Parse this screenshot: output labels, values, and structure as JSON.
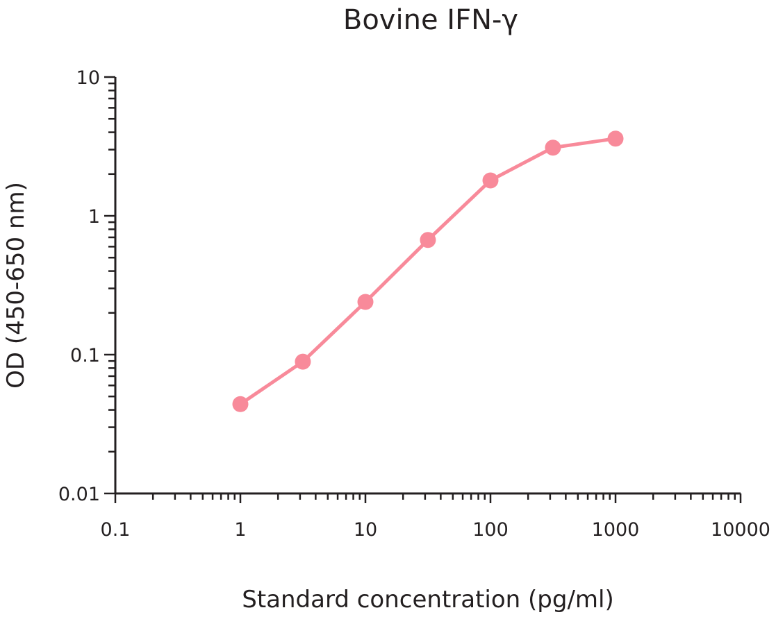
{
  "chart_data": {
    "type": "line",
    "title": "Bovine IFN-γ",
    "xlabel": "Standard concentration (pg/ml)",
    "ylabel": "OD (450-650 nm)",
    "xscale": "log",
    "yscale": "log",
    "xlim": [
      0.1,
      10000
    ],
    "ylim": [
      0.01,
      10
    ],
    "x_tick_labels": [
      "0.1",
      "1",
      "10",
      "100",
      "1000",
      "10000"
    ],
    "y_tick_labels": [
      "0.01",
      "0.1",
      "1",
      "10"
    ],
    "grid": false,
    "legend": "none",
    "series": [
      {
        "color": "#f88a9a",
        "marker": "circle",
        "x": [
          1,
          3.16,
          10,
          31.6,
          100,
          316,
          1000
        ],
        "y": [
          0.044,
          0.089,
          0.24,
          0.67,
          1.8,
          3.1,
          3.6
        ]
      }
    ]
  }
}
